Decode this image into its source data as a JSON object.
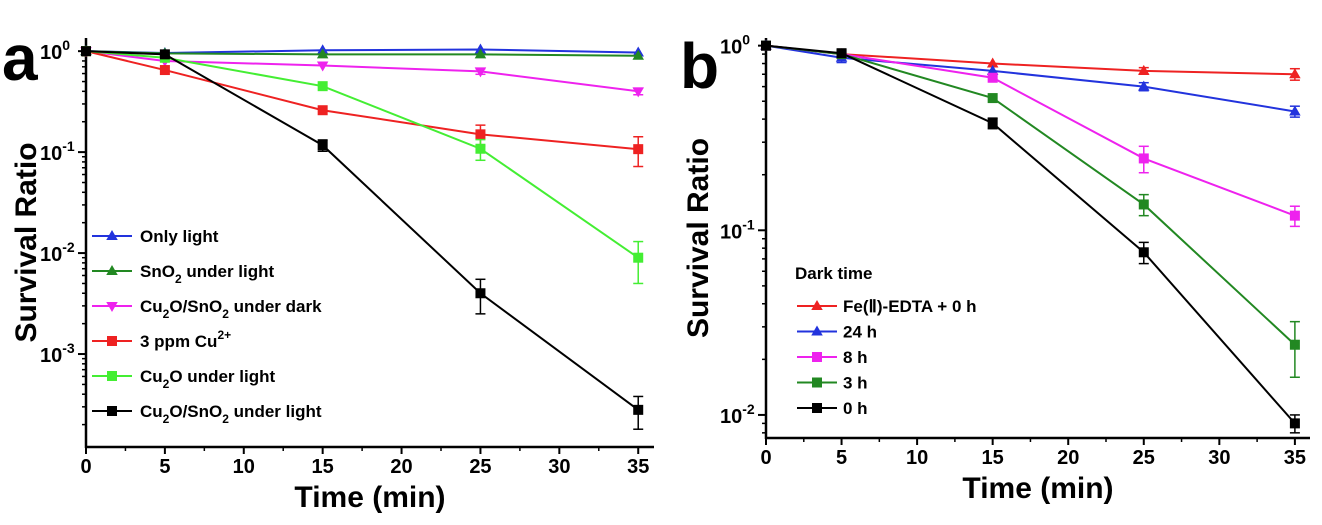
{
  "colors": {
    "red": "#ee2222",
    "blue": "#2233dd",
    "darkgreen": "#228822",
    "magenta": "#ee22ee",
    "lightgreen": "#44ee33",
    "black": "#000000"
  },
  "chart_data": [
    {
      "panel_label": "a",
      "type": "line",
      "xlabel": "Time (min)",
      "ylabel": "Survival Ratio",
      "x": [
        0,
        5,
        15,
        25,
        35
      ],
      "xlim": [
        0,
        36
      ],
      "xticks": [
        "0",
        "5",
        "10",
        "15",
        "20",
        "25",
        "30",
        "35"
      ],
      "yscale": "log",
      "ylim": [
        0.00012,
        1.35
      ],
      "yticks": [
        {
          "value": 1,
          "base": "10",
          "exp": "0"
        },
        {
          "value": 0.1,
          "base": "10",
          "exp": "-1"
        },
        {
          "value": 0.01,
          "base": "10",
          "exp": "-2"
        },
        {
          "value": 0.001,
          "base": "10",
          "exp": "-3"
        }
      ],
      "legend_position": "bottom-left",
      "series": [
        {
          "name": "Only light",
          "color": "#2233dd",
          "marker": "triangle-up",
          "values": [
            1.0,
            0.96,
            1.02,
            1.04,
            0.97
          ],
          "errors": [
            0,
            0,
            0,
            0,
            0
          ]
        },
        {
          "name": "SnO₂ under light",
          "name_parts": [
            "SnO",
            "2",
            " under light"
          ],
          "color": "#228822",
          "marker": "triangle-up",
          "values": [
            1.0,
            0.95,
            0.93,
            0.93,
            0.9
          ],
          "errors": [
            0,
            0,
            0,
            0,
            0
          ]
        },
        {
          "name": "Cu₂O/SnO₂ under dark",
          "name_parts": [
            "Cu",
            "2",
            "O/SnO",
            "2",
            " under dark"
          ],
          "color": "#ee22ee",
          "marker": "triangle-down",
          "values": [
            1.0,
            0.8,
            0.72,
            0.63,
            0.4
          ],
          "errors": [
            0,
            0,
            0,
            0.04,
            0.03
          ]
        },
        {
          "name": "3 ppm Cu²⁺",
          "name_sup": [
            "3 ppm Cu",
            "2+"
          ],
          "color": "#ee2222",
          "marker": "square",
          "values": [
            1.0,
            0.65,
            0.26,
            0.15,
            0.107
          ],
          "errors": [
            0,
            0,
            0,
            0.035,
            0.035
          ]
        },
        {
          "name": "Cu₂O under light",
          "name_parts": [
            "Cu",
            "2",
            "O  under light"
          ],
          "color": "#44ee33",
          "marker": "square",
          "values": [
            1.0,
            0.86,
            0.45,
            0.108,
            0.009
          ],
          "errors": [
            0,
            0,
            0,
            0.025,
            0.004
          ]
        },
        {
          "name": "Cu₂O/SnO₂ under light",
          "name_parts": [
            "Cu",
            "2",
            "O/SnO",
            "2",
            " under light"
          ],
          "color": "#000000",
          "marker": "square",
          "values": [
            1.0,
            0.93,
            0.117,
            0.004,
            0.00028
          ],
          "errors": [
            0,
            0,
            0.015,
            0.0015,
            0.0001
          ]
        }
      ]
    },
    {
      "panel_label": "b",
      "type": "line",
      "xlabel": "Time (min)",
      "ylabel": "Survival Ratio",
      "x": [
        0,
        5,
        15,
        25,
        35
      ],
      "xlim": [
        0,
        36
      ],
      "xticks": [
        "0",
        "5",
        "10",
        "15",
        "20",
        "25",
        "30",
        "35"
      ],
      "yscale": "log",
      "ylim": [
        0.0075,
        1.1
      ],
      "yticks": [
        {
          "value": 1,
          "base": "10",
          "exp": "0"
        },
        {
          "value": 0.1,
          "base": "10",
          "exp": "-1"
        },
        {
          "value": 0.01,
          "base": "10",
          "exp": "-2"
        }
      ],
      "legend_title": "Dark time",
      "legend_position": "bottom-left",
      "series": [
        {
          "name": "Fe(Ⅱ)-EDTA + 0 h",
          "color": "#ee2222",
          "marker": "triangle-up",
          "values": [
            1.0,
            0.9,
            0.8,
            0.73,
            0.7
          ],
          "errors": [
            0,
            0,
            0,
            0.03,
            0.05
          ]
        },
        {
          "name": "24 h",
          "color": "#2233dd",
          "marker": "triangle-up",
          "values": [
            1.0,
            0.86,
            0.73,
            0.6,
            0.44
          ],
          "errors": [
            0,
            0.05,
            0,
            0.03,
            0.03
          ]
        },
        {
          "name": "8 h",
          "color": "#ee22ee",
          "marker": "square",
          "values": [
            1.0,
            0.9,
            0.67,
            0.245,
            0.12
          ],
          "errors": [
            0,
            0,
            0,
            0.04,
            0.015
          ]
        },
        {
          "name": "3 h",
          "color": "#228822",
          "marker": "square",
          "values": [
            1.0,
            0.9,
            0.52,
            0.138,
            0.024
          ],
          "errors": [
            0,
            0,
            0,
            0.018,
            0.008
          ]
        },
        {
          "name": "0 h",
          "color": "#000000",
          "marker": "square",
          "values": [
            1.0,
            0.91,
            0.38,
            0.076,
            0.009
          ],
          "errors": [
            0,
            0,
            0.025,
            0.01,
            0.001
          ]
        }
      ]
    }
  ]
}
